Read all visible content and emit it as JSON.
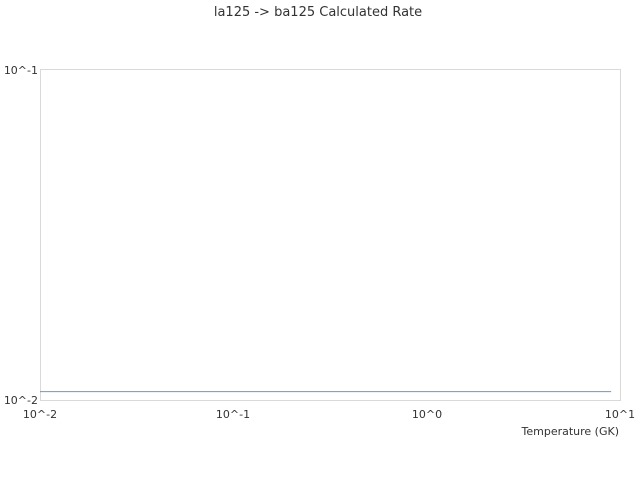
{
  "chart_data": {
    "type": "line",
    "title": "la125 -> ba125 Calculated Rate",
    "xlabel": "Temperature (GK)",
    "ylabel": "",
    "xscale": "log",
    "yscale": "log",
    "xlim": [
      0.01,
      10
    ],
    "ylim": [
      0.01,
      0.1
    ],
    "xticks": [
      "10^-2",
      "10^-1",
      "10^0",
      "10^1"
    ],
    "yticks": [
      "10^-2",
      "10^-1"
    ],
    "grid": false,
    "series": [
      {
        "color": "#5b9bd5",
        "x": [
          0.01,
          0.1,
          1,
          9
        ],
        "y": [
          0.0106,
          0.0106,
          0.0106,
          0.0106
        ]
      }
    ]
  }
}
